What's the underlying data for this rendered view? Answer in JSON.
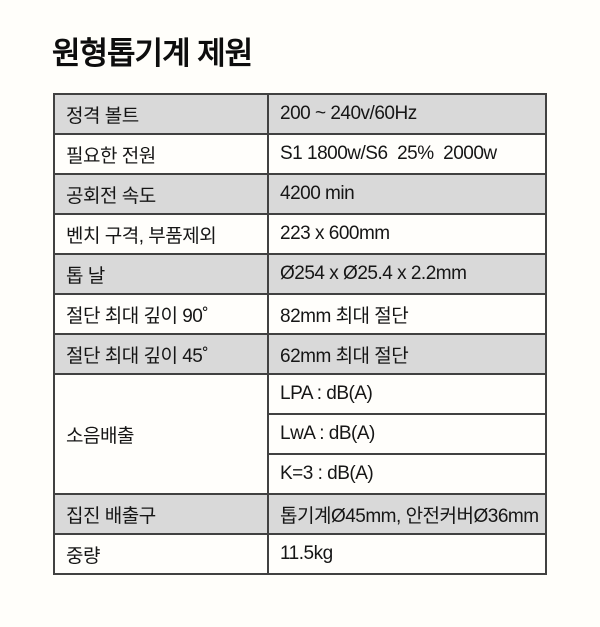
{
  "page": {
    "title": "원형톱기계 제원"
  },
  "table": {
    "rows": [
      {
        "label": "정격 볼트",
        "value": "200 ~ 240v/60Hz",
        "shaded": true
      },
      {
        "label": "필요한 전원",
        "value": "S1 1800w/S6  25%  2000w",
        "shaded": false
      },
      {
        "label": "공회전 속도",
        "value": "4200 min",
        "shaded": true
      },
      {
        "label": "벤치 구격, 부품제외",
        "value": "223 x 600mm",
        "shaded": false
      },
      {
        "label": "톱 날",
        "value": "Ø254 x Ø25.4 x 2.2mm",
        "shaded": true
      },
      {
        "label": "절단 최대 깊이 90˚",
        "value": "82mm 최대 절단",
        "shaded": false
      },
      {
        "label": "절단 최대 깊이 45˚",
        "value": "62mm 최대 절단",
        "shaded": true
      },
      {
        "label": "소음배출",
        "values": [
          "LPA : dB(A)",
          "LwA : dB(A)",
          "K=3 : dB(A)"
        ],
        "shaded": false
      },
      {
        "label": "집진 배출구",
        "value": "톱기계Ø45mm, 안전커버Ø36mm",
        "shaded": true
      },
      {
        "label": "중량",
        "value": "11.5kg",
        "shaded": false
      }
    ]
  },
  "colors": {
    "row_shaded": "#d9d9d9",
    "row_plain": "#fffefb",
    "border": "#414141",
    "text": "#161616",
    "background": "#fffefa"
  }
}
